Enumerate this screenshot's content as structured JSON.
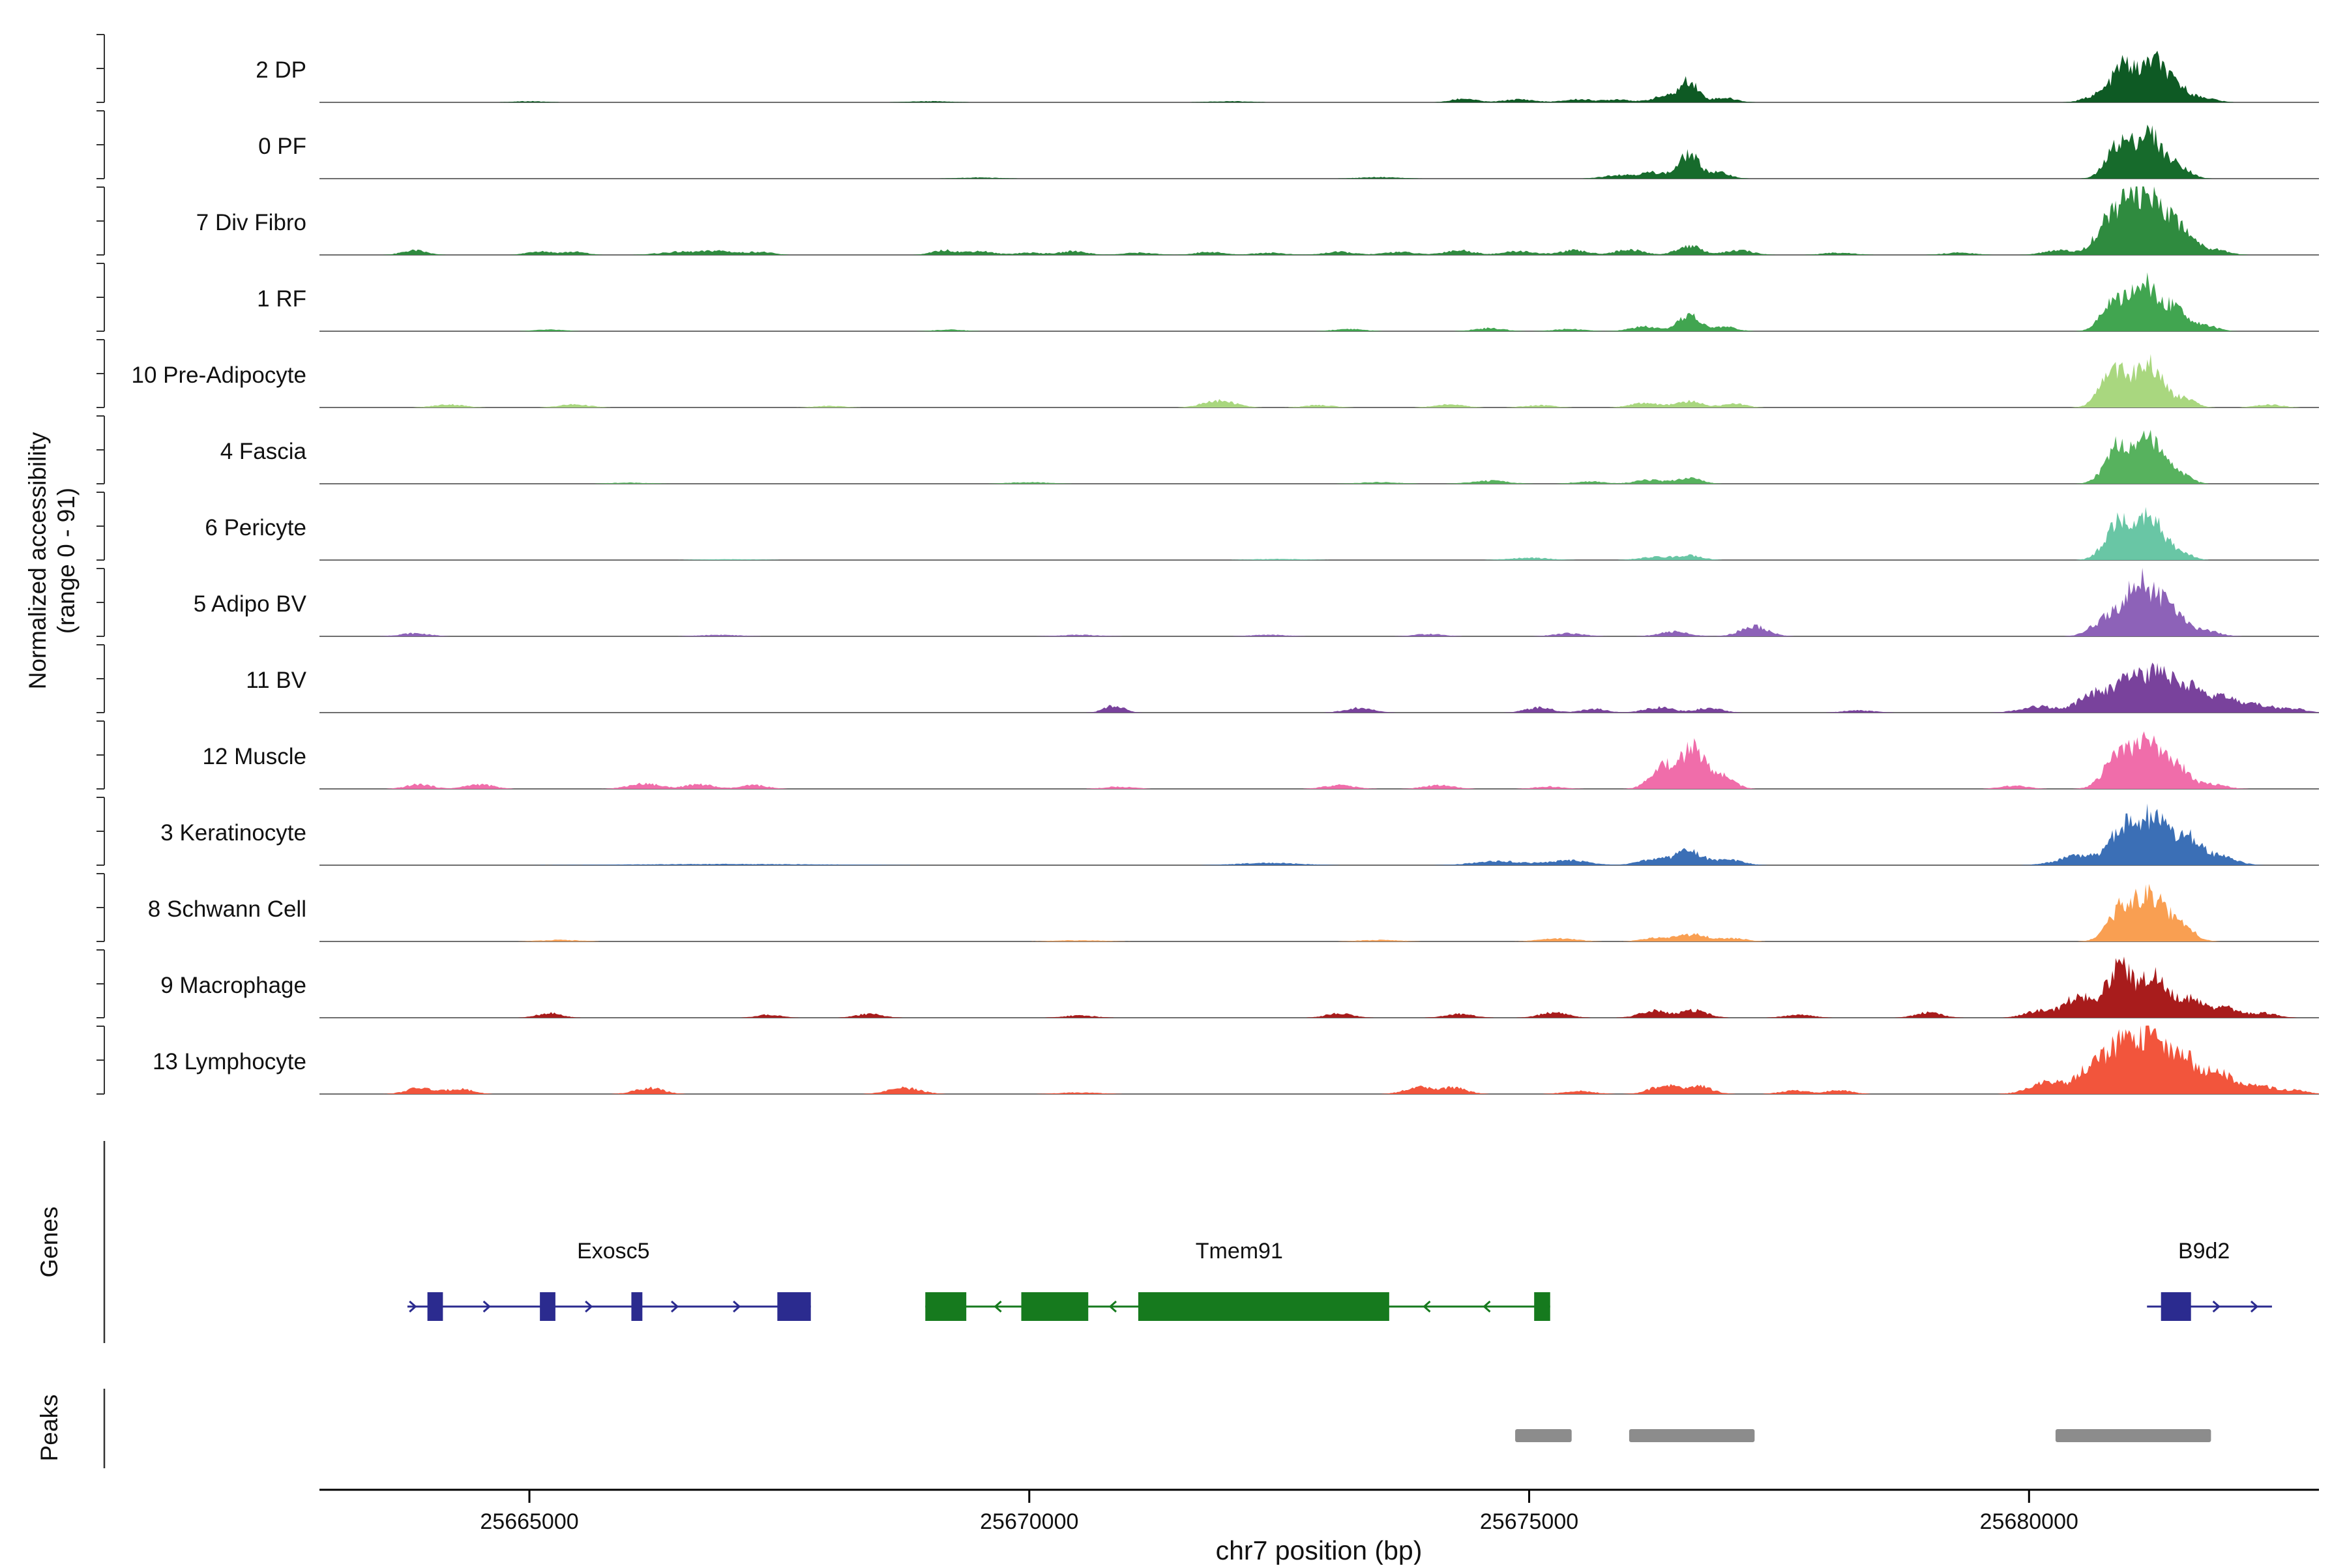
{
  "chart_data": {
    "type": "area",
    "title": "",
    "xlabel": "chr7 position (bp)",
    "ylabel_line1": "Normalized accessibility",
    "ylabel_line2": "(range 0 - 91)",
    "genes_section_label": "Genes",
    "peaks_section_label": "Peaks",
    "xlim": [
      25662900,
      25682900
    ],
    "track_ylim": [
      0,
      91
    ],
    "x_ticks": [
      25665000,
      25670000,
      25675000,
      25680000
    ],
    "baseline_color": "#6e6e6e",
    "peak_bar_color": "#8c8c8c",
    "tracks": [
      {
        "name": "2 DP",
        "color": "#0e5a24",
        "peaks": [
          [
            25665000,
            150,
            1.5
          ],
          [
            25669000,
            200,
            1.5
          ],
          [
            25672000,
            200,
            1.5
          ],
          [
            25674350,
            120,
            5
          ],
          [
            25674900,
            150,
            4
          ],
          [
            25675500,
            150,
            4
          ],
          [
            25675900,
            120,
            4
          ],
          [
            25676350,
            120,
            8
          ],
          [
            25676600,
            90,
            28
          ],
          [
            25676950,
            120,
            6
          ],
          [
            25680700,
            130,
            10
          ],
          [
            25680950,
            110,
            48
          ],
          [
            25681250,
            120,
            55
          ],
          [
            25681500,
            100,
            18
          ],
          [
            25681750,
            120,
            6
          ]
        ]
      },
      {
        "name": "0 PF",
        "color": "#176b2c",
        "peaks": [
          [
            25669500,
            200,
            1.5
          ],
          [
            25673500,
            200,
            2
          ],
          [
            25675900,
            150,
            5
          ],
          [
            25676250,
            130,
            8
          ],
          [
            25676600,
            100,
            32
          ],
          [
            25676900,
            110,
            8
          ],
          [
            25680900,
            120,
            45
          ],
          [
            25681200,
            130,
            58
          ],
          [
            25681500,
            110,
            16
          ]
        ]
      },
      {
        "name": "7 Div Fibro",
        "color": "#2f8b3f",
        "peaks": [
          [
            25663850,
            120,
            6
          ],
          [
            25665100,
            120,
            5
          ],
          [
            25665450,
            120,
            4
          ],
          [
            25666500,
            200,
            4
          ],
          [
            25666900,
            150,
            5
          ],
          [
            25667300,
            130,
            4
          ],
          [
            25669150,
            120,
            6
          ],
          [
            25669500,
            130,
            5
          ],
          [
            25670000,
            150,
            3
          ],
          [
            25670450,
            130,
            5
          ],
          [
            25671100,
            150,
            3
          ],
          [
            25671800,
            140,
            4
          ],
          [
            25672400,
            150,
            3
          ],
          [
            25673100,
            150,
            4
          ],
          [
            25673700,
            150,
            4
          ],
          [
            25674300,
            150,
            6
          ],
          [
            25674900,
            150,
            5
          ],
          [
            25675450,
            140,
            6
          ],
          [
            25676000,
            140,
            7
          ],
          [
            25676600,
            120,
            12
          ],
          [
            25677100,
            140,
            6
          ],
          [
            25678100,
            150,
            3
          ],
          [
            25679300,
            150,
            3
          ],
          [
            25680300,
            150,
            6
          ],
          [
            25680800,
            130,
            45
          ],
          [
            25681050,
            120,
            68
          ],
          [
            25681300,
            120,
            62
          ],
          [
            25681550,
            110,
            30
          ],
          [
            25681850,
            130,
            8
          ]
        ]
      },
      {
        "name": "1 RF",
        "color": "#41a550",
        "peaks": [
          [
            25665200,
            150,
            2
          ],
          [
            25669200,
            150,
            2
          ],
          [
            25673200,
            150,
            3
          ],
          [
            25674600,
            150,
            4
          ],
          [
            25675400,
            150,
            3
          ],
          [
            25676150,
            140,
            6
          ],
          [
            25676600,
            100,
            22
          ],
          [
            25676950,
            120,
            6
          ],
          [
            25680850,
            120,
            40
          ],
          [
            25681150,
            120,
            60
          ],
          [
            25681450,
            120,
            32
          ],
          [
            25681750,
            120,
            8
          ]
        ]
      },
      {
        "name": "10 Pre-Adipocyte",
        "color": "#a9d77f",
        "peaks": [
          [
            25664200,
            150,
            4
          ],
          [
            25665450,
            150,
            4
          ],
          [
            25668000,
            150,
            2
          ],
          [
            25671900,
            160,
            9
          ],
          [
            25672900,
            150,
            3
          ],
          [
            25674200,
            150,
            4
          ],
          [
            25675100,
            150,
            3
          ],
          [
            25676150,
            140,
            6
          ],
          [
            25676600,
            130,
            8
          ],
          [
            25677050,
            120,
            5
          ],
          [
            25680850,
            130,
            50
          ],
          [
            25681200,
            130,
            58
          ],
          [
            25681550,
            110,
            12
          ],
          [
            25682400,
            130,
            4
          ]
        ]
      },
      {
        "name": "4 Fascia",
        "color": "#57b25e",
        "peaks": [
          [
            25666000,
            200,
            1.5
          ],
          [
            25670000,
            200,
            2
          ],
          [
            25673500,
            200,
            2
          ],
          [
            25674600,
            180,
            4
          ],
          [
            25675600,
            150,
            3
          ],
          [
            25676200,
            140,
            5
          ],
          [
            25676600,
            120,
            8
          ],
          [
            25680900,
            130,
            50
          ],
          [
            25681200,
            130,
            56
          ],
          [
            25681500,
            110,
            14
          ]
        ]
      },
      {
        "name": "6 Pericyte",
        "color": "#69c6a5",
        "peaks": [
          [
            25667000,
            300,
            1
          ],
          [
            25672500,
            250,
            1.5
          ],
          [
            25675000,
            200,
            3
          ],
          [
            25676250,
            150,
            4
          ],
          [
            25676600,
            130,
            6
          ],
          [
            25680900,
            130,
            52
          ],
          [
            25681200,
            130,
            58
          ],
          [
            25681500,
            110,
            12
          ]
        ]
      },
      {
        "name": "5 Adipo BV",
        "color": "#8d62b8",
        "peaks": [
          [
            25663850,
            150,
            4
          ],
          [
            25666900,
            200,
            2
          ],
          [
            25670500,
            200,
            2
          ],
          [
            25672400,
            180,
            2
          ],
          [
            25674000,
            150,
            3
          ],
          [
            25675400,
            150,
            4
          ],
          [
            25676450,
            150,
            6
          ],
          [
            25677250,
            140,
            13
          ],
          [
            25680800,
            150,
            25
          ],
          [
            25681100,
            130,
            70
          ],
          [
            25681400,
            130,
            42
          ],
          [
            25681750,
            140,
            8
          ]
        ]
      },
      {
        "name": "11 BV",
        "color": "#79429c",
        "peaks": [
          [
            25670850,
            100,
            9
          ],
          [
            25673300,
            140,
            6
          ],
          [
            25675100,
            130,
            7
          ],
          [
            25675650,
            120,
            5
          ],
          [
            25676300,
            140,
            7
          ],
          [
            25676800,
            130,
            6
          ],
          [
            25678300,
            150,
            3
          ],
          [
            25680100,
            180,
            8
          ],
          [
            25680650,
            150,
            25
          ],
          [
            25681000,
            140,
            40
          ],
          [
            25681300,
            140,
            46
          ],
          [
            25681600,
            140,
            32
          ],
          [
            25681950,
            150,
            20
          ],
          [
            25682300,
            140,
            10
          ],
          [
            25682650,
            130,
            5
          ]
        ]
      },
      {
        "name": "12 Muscle",
        "color": "#f06daa",
        "peaks": [
          [
            25663900,
            130,
            6
          ],
          [
            25664500,
            140,
            6
          ],
          [
            25666150,
            160,
            7
          ],
          [
            25666700,
            140,
            6
          ],
          [
            25667250,
            130,
            5
          ],
          [
            25670900,
            150,
            3
          ],
          [
            25673100,
            150,
            5
          ],
          [
            25674100,
            150,
            5
          ],
          [
            25675200,
            150,
            3
          ],
          [
            25676350,
            130,
            30
          ],
          [
            25676650,
            120,
            52
          ],
          [
            25676950,
            110,
            16
          ],
          [
            25679850,
            140,
            4
          ],
          [
            25680900,
            140,
            45
          ],
          [
            25681200,
            140,
            55
          ],
          [
            25681500,
            120,
            26
          ],
          [
            25681850,
            130,
            6
          ]
        ]
      },
      {
        "name": "3 Keratinocyte",
        "color": "#3b6fb6",
        "peaks": [
          [
            25667000,
            1000,
            1.5
          ],
          [
            25672400,
            300,
            3
          ],
          [
            25674700,
            250,
            5
          ],
          [
            25675400,
            200,
            6
          ],
          [
            25676250,
            150,
            8
          ],
          [
            25676600,
            130,
            18
          ],
          [
            25677000,
            140,
            7
          ],
          [
            25680500,
            200,
            12
          ],
          [
            25680950,
            140,
            48
          ],
          [
            25681250,
            140,
            58
          ],
          [
            25681600,
            140,
            36
          ],
          [
            25681950,
            140,
            10
          ]
        ]
      },
      {
        "name": "8 Schwann Cell",
        "color": "#f99f52",
        "peaks": [
          [
            25665300,
            200,
            2
          ],
          [
            25670500,
            250,
            1.5
          ],
          [
            25673500,
            200,
            2
          ],
          [
            25675300,
            180,
            4
          ],
          [
            25676300,
            150,
            5
          ],
          [
            25676650,
            140,
            9
          ],
          [
            25677050,
            130,
            4
          ],
          [
            25680950,
            140,
            46
          ],
          [
            25681250,
            140,
            56
          ],
          [
            25681550,
            120,
            16
          ]
        ]
      },
      {
        "name": "9 Macrophage",
        "color": "#a81c1c",
        "peaks": [
          [
            25665200,
            120,
            6
          ],
          [
            25667400,
            120,
            4
          ],
          [
            25668400,
            130,
            5
          ],
          [
            25670500,
            150,
            3
          ],
          [
            25673100,
            130,
            6
          ],
          [
            25674300,
            140,
            5
          ],
          [
            25675250,
            140,
            7
          ],
          [
            25676250,
            140,
            9
          ],
          [
            25676650,
            130,
            10
          ],
          [
            25677700,
            140,
            4
          ],
          [
            25679000,
            130,
            7
          ],
          [
            25680100,
            140,
            9
          ],
          [
            25680500,
            140,
            28
          ],
          [
            25680900,
            130,
            65
          ],
          [
            25681250,
            130,
            55
          ],
          [
            25681600,
            130,
            24
          ],
          [
            25681950,
            140,
            14
          ],
          [
            25682350,
            130,
            6
          ]
        ]
      },
      {
        "name": "13 Lymphocyte",
        "color": "#f2553c",
        "peaks": [
          [
            25663900,
            130,
            8
          ],
          [
            25664300,
            130,
            7
          ],
          [
            25666200,
            140,
            8
          ],
          [
            25668750,
            160,
            8
          ],
          [
            25670500,
            200,
            2
          ],
          [
            25673900,
            140,
            9
          ],
          [
            25674250,
            130,
            8
          ],
          [
            25675500,
            150,
            4
          ],
          [
            25676350,
            140,
            11
          ],
          [
            25676700,
            130,
            10
          ],
          [
            25677650,
            130,
            5
          ],
          [
            25678100,
            130,
            5
          ],
          [
            25680200,
            180,
            16
          ],
          [
            25680650,
            140,
            40
          ],
          [
            25680950,
            140,
            62
          ],
          [
            25681250,
            140,
            68
          ],
          [
            25681550,
            140,
            44
          ],
          [
            25681900,
            140,
            28
          ],
          [
            25682300,
            140,
            11
          ],
          [
            25682650,
            130,
            5
          ]
        ]
      }
    ],
    "genes": [
      {
        "name": "Exosc5",
        "strand": "+",
        "color": "#2b2b8f",
        "start": 25663780,
        "end": 25667815,
        "label_bp": 25665840,
        "exons": [
          [
            25663980,
            25664135
          ],
          [
            25665105,
            25665260
          ],
          [
            25666020,
            25666130
          ],
          [
            25667480,
            25667815
          ]
        ],
        "arrows": [
          25663860,
          25664600,
          25665620,
          25666480,
          25667100
        ]
      },
      {
        "name": "Tmem91",
        "strand": "-",
        "color": "#167a1e",
        "start": 25668960,
        "end": 25675210,
        "label_bp": 25672100,
        "exons": [
          [
            25668960,
            25669370
          ],
          [
            25669920,
            25670590
          ],
          [
            25671090,
            25673600
          ],
          [
            25675050,
            25675210
          ]
        ],
        "arrows": [
          25669660,
          25670810,
          25673950,
          25674550
        ]
      },
      {
        "name": "B9d2",
        "strand": "+",
        "color": "#2b2b8f",
        "start": 25681180,
        "end": 25682430,
        "label_bp": 25681750,
        "exons": [
          [
            25681320,
            25681620
          ]
        ],
        "arrows": [
          25681900,
          25682280
        ]
      }
    ],
    "peaks_track": [
      [
        25674860,
        25675425
      ],
      [
        25676000,
        25677255
      ],
      [
        25680265,
        25681820
      ]
    ]
  }
}
